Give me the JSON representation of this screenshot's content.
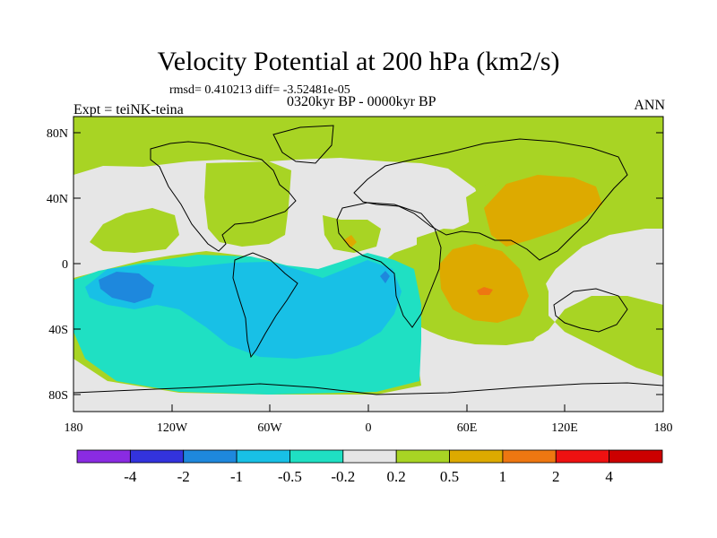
{
  "chart_data": {
    "type": "heatmap",
    "title": "Velocity Potential at 200 hPa (km2/s)",
    "stats_text": "rmsd= 0.410213  diff= -3.52481e-05",
    "subtitle": "0320kyr BP - 0000kyr BP",
    "left_label": "Expt = teiNK-teina",
    "right_label": "ANN",
    "projection": "cylindrical equidistant",
    "lon_range": [
      -180,
      180
    ],
    "lat_range": [
      -90,
      90
    ],
    "x_ticks": [
      "180",
      "120W",
      "60W",
      "0",
      "60E",
      "120E",
      "180"
    ],
    "y_ticks": [
      "80N",
      "40N",
      "0",
      "40S",
      "80S"
    ],
    "colorbar": {
      "levels": [
        "-4",
        "-2",
        "-1",
        "-0.5",
        "-0.2",
        "0.2",
        "0.5",
        "1",
        "2",
        "4"
      ],
      "colors": [
        "#8a2be2",
        "#3333dd",
        "#1e88dd",
        "#18c0e6",
        "#1fe0c3",
        "#e6e6e6",
        "#a8d424",
        "#ddaa00",
        "#ee7711",
        "#ee1111"
      ]
    },
    "regions": [
      {
        "range": "0.2 to 0.5",
        "color": "#a8d424",
        "area": "Arctic band and North America / North Atlantic, northern Africa, Europe, western & central Asia"
      },
      {
        "range": "0.5 to 1",
        "color": "#ddaa00",
        "area": "East Asia, Arabian Sea, East Africa / western Indian Ocean"
      },
      {
        "range": "1 to 2",
        "color": "#ee7711",
        "area": "small centers over western Indian Ocean and Gulf of Guinea"
      },
      {
        "range": "-0.2 to 0.2",
        "color": "#e6e6e6",
        "area": "North Pacific, eastern Indian Ocean, Australia, Antarctic coast"
      },
      {
        "range": "-0.5 to -0.2",
        "color": "#1fe0c3",
        "area": "South Pacific, Southern Ocean, Antarctica"
      },
      {
        "range": "-1 to -0.5",
        "color": "#18c0e6",
        "area": "tropical South Pacific, South America, South Atlantic"
      },
      {
        "range": "-2 to -1",
        "color": "#1e88dd",
        "area": "centers in central South Pacific and Gulf of Guinea"
      }
    ]
  }
}
